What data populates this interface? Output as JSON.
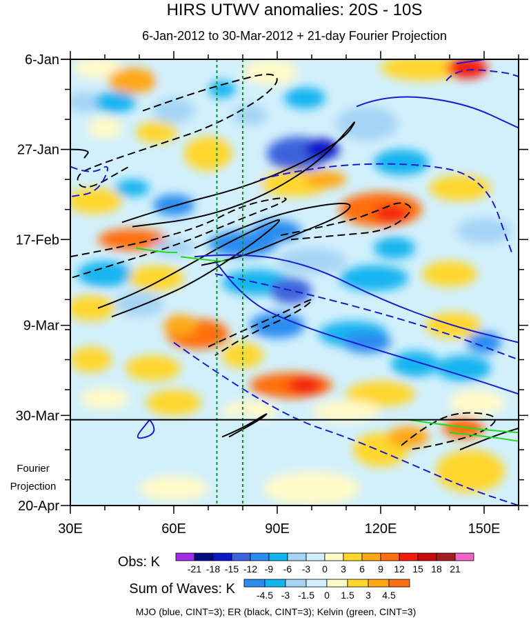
{
  "chart_data": {
    "type": "heatmap",
    "title": "HIRS UTWV anomalies: 20S - 10S",
    "subtitle": "6-Jan-2012 to 30-Mar-2012 + 21-day Fourier Projection",
    "x_ticks": [
      {
        "value": 30,
        "label": "30E"
      },
      {
        "value": 60,
        "label": "60E"
      },
      {
        "value": 90,
        "label": "90E"
      },
      {
        "value": 120,
        "label": "120E"
      },
      {
        "value": 150,
        "label": "150E"
      }
    ],
    "xlim": [
      30,
      160
    ],
    "ylim": [
      0,
      104
    ],
    "y_ticks": [
      {
        "day": 0,
        "label": "6-Jan"
      },
      {
        "day": 21,
        "label": "27-Jan"
      },
      {
        "day": 42,
        "label": "17-Feb"
      },
      {
        "day": 62,
        "label": "9-Mar"
      },
      {
        "day": 83,
        "label": "30-Mar"
      },
      {
        "day": 104,
        "label": "20-Apr"
      }
    ],
    "forecast_start_day": 84,
    "forecast_label": [
      "Fourier",
      "Projection"
    ],
    "reference_lines_lon": [
      72.5,
      80
    ],
    "obs_legend": {
      "title": "Obs: K",
      "labels": [
        "-21",
        "-18",
        "-15",
        "-12",
        "-9",
        "-6",
        "-3",
        "0",
        "3",
        "6",
        "9",
        "12",
        "15",
        "18",
        "21"
      ],
      "colors": [
        "#a02be0",
        "#000a80",
        "#0a18c8",
        "#3c64dc",
        "#2a8cf0",
        "#12b4f0",
        "#a6d4f5",
        "#d2f0fc",
        "#fffac8",
        "#ffd72e",
        "#ffa814",
        "#ff6e10",
        "#f51c0a",
        "#c80a0a",
        "#a02020",
        "#f064c8"
      ]
    },
    "waves_legend": {
      "title": "Sum of Waves: K",
      "labels": [
        "-4.5",
        "-3",
        "-1.5",
        "0",
        "1.5",
        "3",
        "4.5"
      ],
      "colors": [
        "#2a8cf0",
        "#12b4f0",
        "#a6d4f5",
        "#d2f0fc",
        "#fffac8",
        "#ffd72e",
        "#ffa814",
        "#ff6e10"
      ]
    },
    "footnote": "MJO (blue, CINT=3); ER (black, CINT=3); Kelvin (green, CINT=3)",
    "series": [
      {
        "name": "MJO",
        "color": "#1a1ad0",
        "cint": 3
      },
      {
        "name": "ER",
        "color": "#000000",
        "cint": 3
      },
      {
        "name": "Kelvin",
        "color": "#20dc20",
        "cint": 3
      }
    ]
  }
}
